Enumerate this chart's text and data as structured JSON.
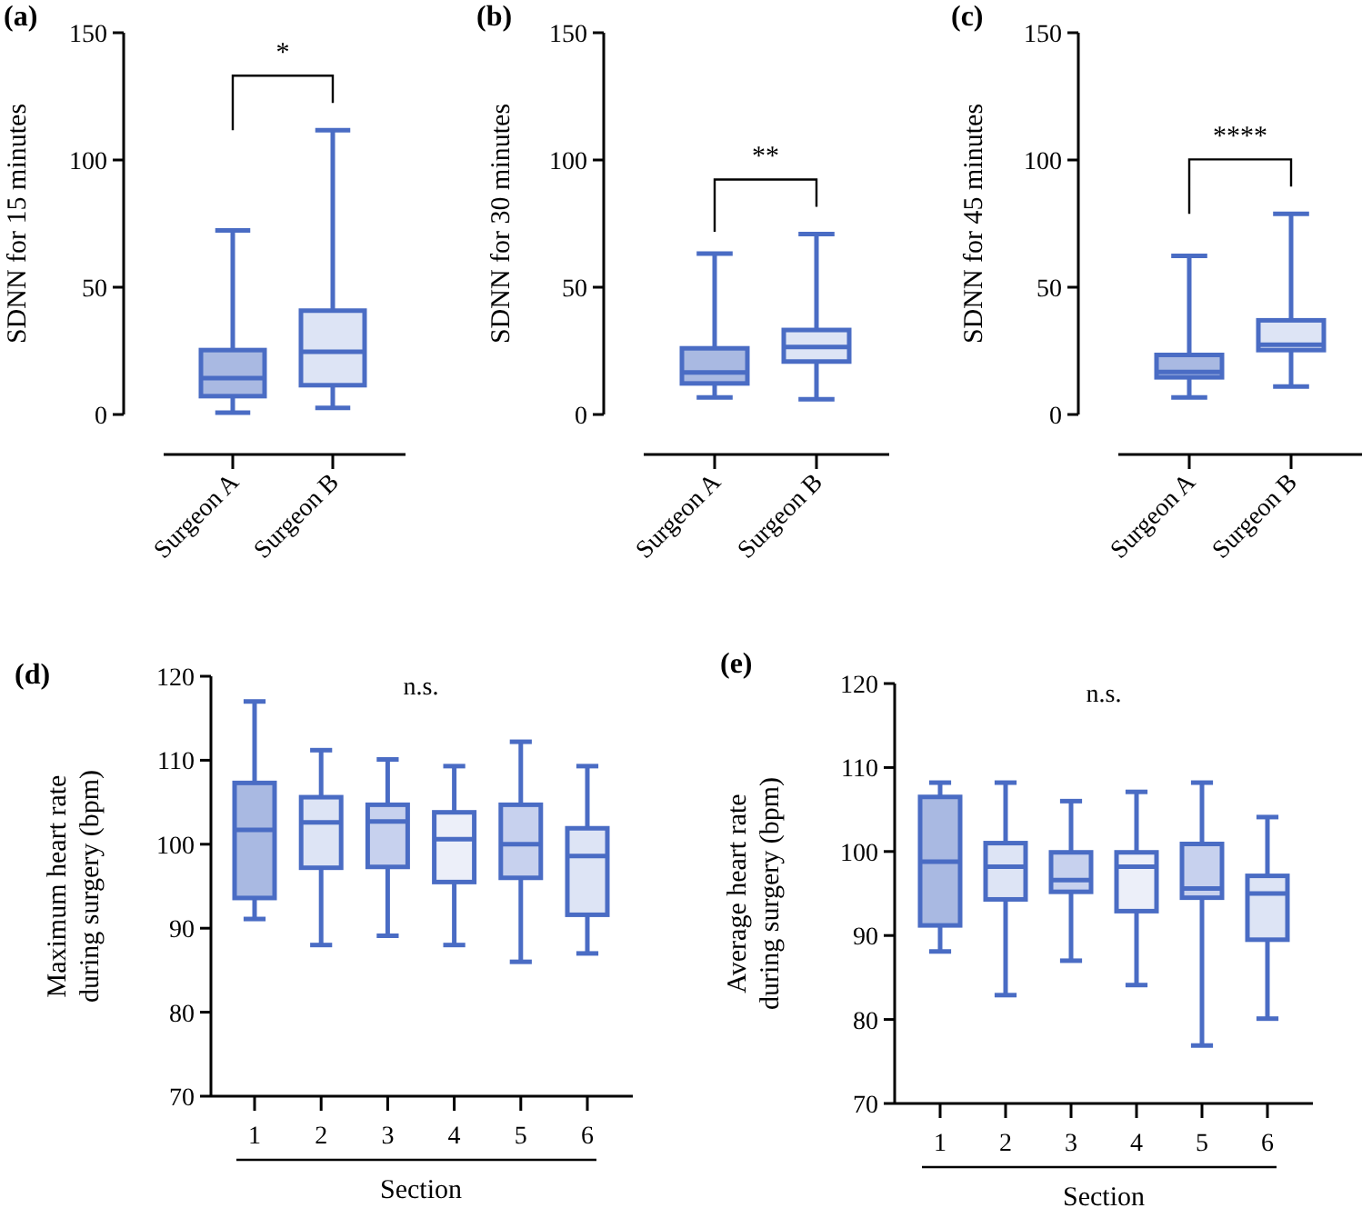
{
  "chart_data": [
    {
      "type": "box",
      "title": "(a)",
      "ylabel": "SDNN for 15 minutes",
      "categories": [
        "Surgeon A",
        "Surgeon B"
      ],
      "color": "#4a6cc4",
      "colors": [
        "#a9b9e2",
        "#dde4f5"
      ],
      "ylim": [
        0,
        150
      ],
      "yticks": [
        0,
        50,
        100,
        150
      ],
      "annotations": [
        "*"
      ],
      "boxes": [
        {
          "low": 0.7,
          "q1": 7.2,
          "median": 14.3,
          "q3": 25.3,
          "high": 72.3
        },
        {
          "low": 2.6,
          "q1": 11.5,
          "median": 24.6,
          "q3": 40.8,
          "high": 111.7
        }
      ]
    },
    {
      "type": "box",
      "title": "(b)",
      "ylabel": "SDNN for 30 minutes",
      "categories": [
        "Surgeon A",
        "Surgeon B"
      ],
      "color": "#4a6cc4",
      "colors": [
        "#a9b9e2",
        "#dde4f5"
      ],
      "ylim": [
        0,
        150
      ],
      "yticks": [
        0,
        50,
        100,
        150
      ],
      "annotations": [
        "**"
      ],
      "boxes": [
        {
          "low": 6.7,
          "q1": 12.2,
          "median": 16.5,
          "q3": 26,
          "high": 63.2
        },
        {
          "low": 6,
          "q1": 20.8,
          "median": 26.5,
          "q3": 33.2,
          "high": 70.9
        }
      ]
    },
    {
      "type": "box",
      "title": "(c)",
      "ylabel": "SDNN for 45 minutes",
      "categories": [
        "Surgeon A",
        "Surgeon B"
      ],
      "color": "#4a6cc4",
      "colors": [
        "#a9b9e2",
        "#dde4f5"
      ],
      "ylim": [
        0,
        150
      ],
      "yticks": [
        0,
        50,
        100,
        150
      ],
      "annotations": [
        "****"
      ],
      "boxes": [
        {
          "low": 6.7,
          "q1": 14.6,
          "median": 16.7,
          "q3": 23.4,
          "high": 62.3
        },
        {
          "low": 11,
          "q1": 25.3,
          "median": 27.4,
          "q3": 37,
          "high": 78.8
        }
      ]
    },
    {
      "type": "box",
      "title": "(d)",
      "ylabel": "Maximum heart rate\nduring surgery (bpm)",
      "xlabel": "Section",
      "categories": [
        "1",
        "2",
        "3",
        "4",
        "5",
        "6"
      ],
      "color": "#4a6cc4",
      "colors": [
        "#a9b9e2",
        "#dde4f5",
        "#c7d1ee",
        "#eceff9",
        "#c7d1ee",
        "#dde4f5"
      ],
      "ylim": [
        70,
        120
      ],
      "yticks": [
        70,
        80,
        90,
        100,
        110,
        120
      ],
      "annotations": [
        "n.s."
      ],
      "boxes": [
        {
          "low": 91.1,
          "q1": 93.6,
          "median": 101.7,
          "q3": 107.3,
          "high": 117
        },
        {
          "low": 88,
          "q1": 97.2,
          "median": 102.6,
          "q3": 105.6,
          "high": 111.2
        },
        {
          "low": 89.1,
          "q1": 97.3,
          "median": 102.7,
          "q3": 104.7,
          "high": 110.1
        },
        {
          "low": 88,
          "q1": 95.5,
          "median": 100.6,
          "q3": 103.8,
          "high": 109.3
        },
        {
          "low": 86,
          "q1": 96,
          "median": 100,
          "q3": 104.7,
          "high": 112.2
        },
        {
          "low": 87,
          "q1": 91.6,
          "median": 98.6,
          "q3": 101.9,
          "high": 109.3
        }
      ]
    },
    {
      "type": "box",
      "title": "(e)",
      "ylabel": "Average heart rate\nduring surgery (bpm)",
      "xlabel": "Section",
      "categories": [
        "1",
        "2",
        "3",
        "4",
        "5",
        "6"
      ],
      "color": "#4a6cc4",
      "colors": [
        "#a9b9e2",
        "#dde4f5",
        "#c7d1ee",
        "#eceff9",
        "#c7d1ee",
        "#dde4f5"
      ],
      "ylim": [
        70,
        120
      ],
      "yticks": [
        70,
        80,
        90,
        100,
        110,
        120
      ],
      "annotations": [
        "n.s."
      ],
      "boxes": [
        {
          "low": 88.1,
          "q1": 91.2,
          "median": 98.8,
          "q3": 106.5,
          "high": 108.2
        },
        {
          "low": 82.9,
          "q1": 94.3,
          "median": 98.2,
          "q3": 101,
          "high": 108.2
        },
        {
          "low": 87,
          "q1": 95.2,
          "median": 96.6,
          "q3": 99.9,
          "high": 106
        },
        {
          "low": 84.1,
          "q1": 92.9,
          "median": 98.2,
          "q3": 99.9,
          "high": 107.1
        },
        {
          "low": 76.9,
          "q1": 94.5,
          "median": 95.6,
          "q3": 100.9,
          "high": 108.2
        },
        {
          "low": 80.1,
          "q1": 89.5,
          "median": 95,
          "q3": 97.1,
          "high": 104.1
        }
      ]
    }
  ]
}
